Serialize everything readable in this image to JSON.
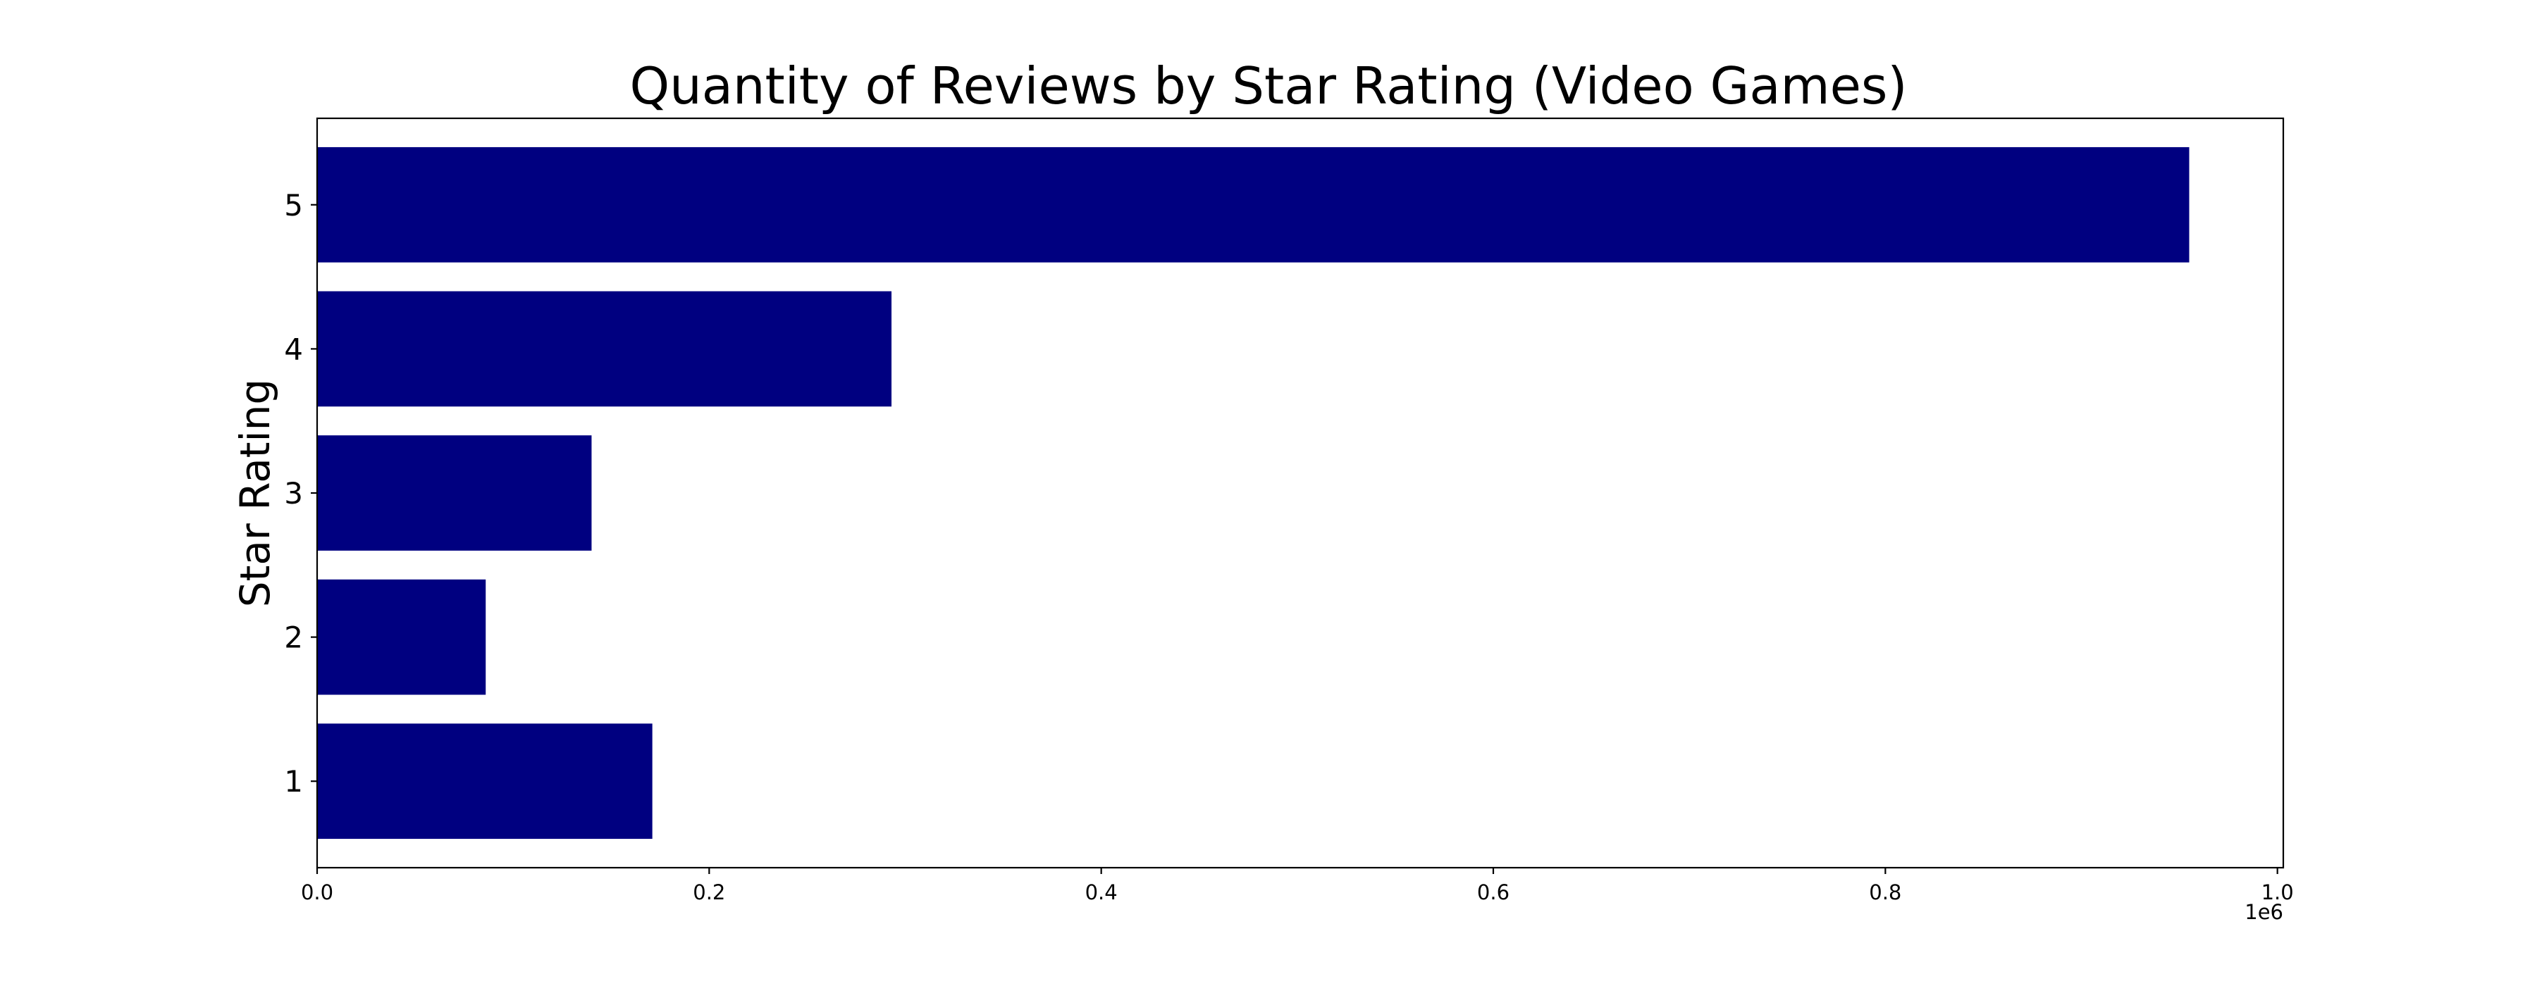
{
  "chart_data": {
    "type": "bar",
    "orientation": "horizontal",
    "title": "Quantity of Reviews by Star Rating (Video Games)",
    "xlabel": "",
    "ylabel": "Star Rating",
    "categories": [
      "1",
      "2",
      "3",
      "4",
      "5"
    ],
    "values": [
      171000,
      86000,
      140000,
      293000,
      955000
    ],
    "bar_color": "#000080",
    "xlim": [
      0,
      1003000
    ],
    "xticks": [
      0,
      200000,
      400000,
      600000,
      800000,
      1000000
    ],
    "xtick_labels": [
      "0.0",
      "0.2",
      "0.4",
      "0.6",
      "0.8",
      "1.0"
    ],
    "x_offset_label": "1e6",
    "grid": false,
    "legend": false
  }
}
